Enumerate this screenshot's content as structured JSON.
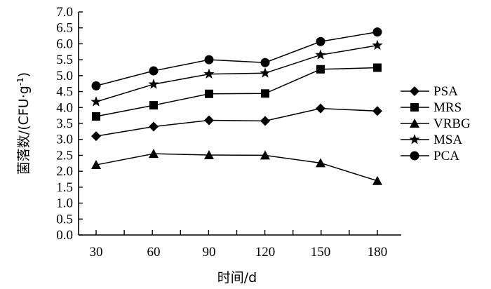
{
  "chart_data": {
    "type": "line",
    "x": [
      30,
      60,
      90,
      120,
      150,
      180
    ],
    "x_tick_labels": [
      "30",
      "60",
      "90",
      "120",
      "150",
      "180"
    ],
    "ylim": [
      0.0,
      7.0
    ],
    "y_ticks": [
      0.0,
      0.5,
      1.0,
      1.5,
      2.0,
      2.5,
      3.0,
      3.5,
      4.0,
      4.5,
      5.0,
      5.5,
      6.0,
      6.5,
      7.0
    ],
    "y_tick_labels": [
      "0.0",
      "0.5",
      "1.0",
      "1.5",
      "2.0",
      "2.5",
      "3.0",
      "3.5",
      "4.0",
      "4.5",
      "5.0",
      "5.5",
      "6.0",
      "6.5",
      "7.0"
    ],
    "xlabel": "时间/d",
    "ylabel_main": "菌落数/(CFU·g",
    "ylabel_sup": "-1",
    "ylabel_close": ")",
    "grid": false,
    "legend_position": "right",
    "series": [
      {
        "name": "PSA",
        "marker": "diamond",
        "values": [
          3.1,
          3.4,
          3.6,
          3.58,
          3.97,
          3.89
        ]
      },
      {
        "name": "MRS",
        "marker": "square",
        "values": [
          3.72,
          4.07,
          4.43,
          4.44,
          5.2,
          5.25
        ]
      },
      {
        "name": "VRBG",
        "marker": "triangle",
        "values": [
          2.2,
          2.55,
          2.51,
          2.5,
          2.26,
          1.7
        ]
      },
      {
        "name": "MSA",
        "marker": "star",
        "values": [
          4.18,
          4.73,
          5.05,
          5.08,
          5.65,
          5.95
        ]
      },
      {
        "name": "PCA",
        "marker": "circle",
        "values": [
          4.68,
          5.15,
          5.5,
          5.41,
          6.07,
          6.37
        ]
      }
    ],
    "color": "#000000"
  }
}
